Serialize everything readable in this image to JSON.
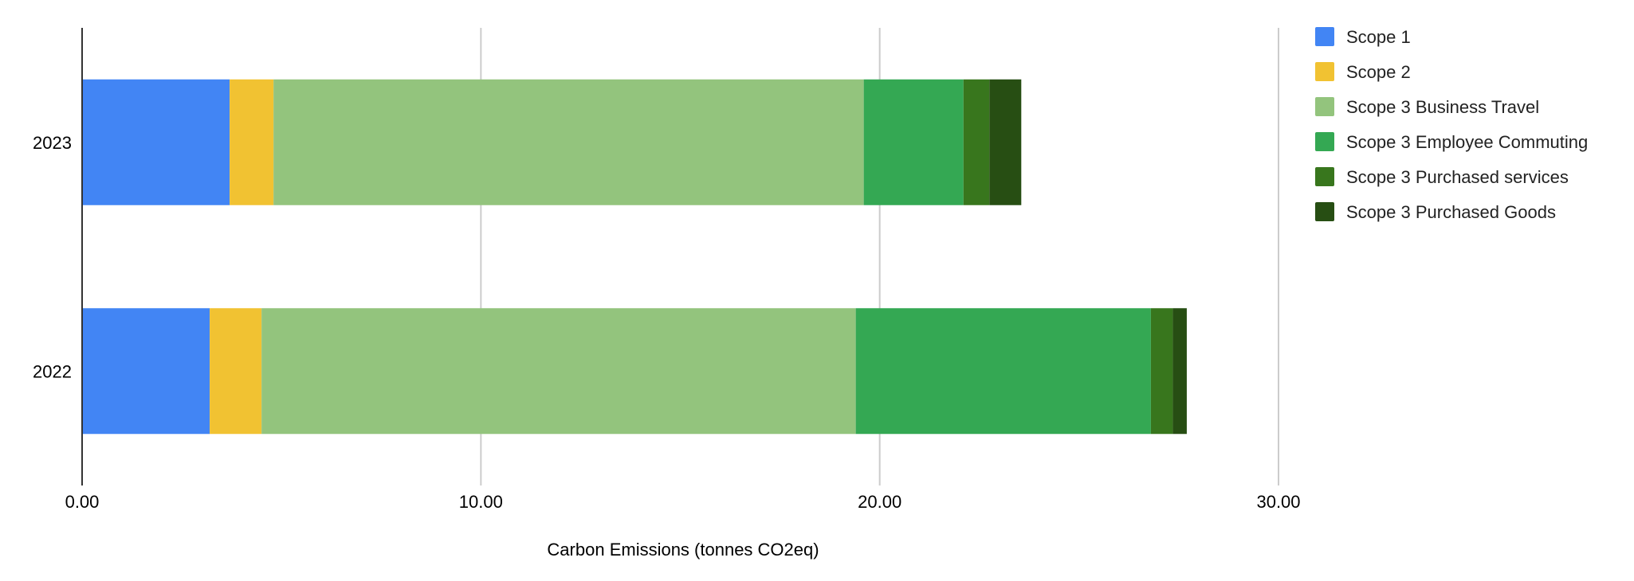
{
  "chart_data": {
    "type": "bar",
    "orientation": "horizontal",
    "stacked": true,
    "title": "",
    "xlabel": "Carbon Emissions (tonnes CO2eq)",
    "ylabel": "",
    "xlim": [
      0,
      30
    ],
    "x_ticks": [
      "0.00",
      "10.00",
      "20.00",
      "30.00"
    ],
    "grid": true,
    "legend_position": "right",
    "categories": [
      "2023",
      "2022"
    ],
    "series": [
      {
        "name": "Scope 1",
        "color": "#4285F4",
        "values": [
          3.7,
          3.2
        ]
      },
      {
        "name": "Scope 2",
        "color": "#F1C232",
        "values": [
          1.1,
          1.3
        ]
      },
      {
        "name": "Scope 3 Business Travel",
        "color": "#93C47D",
        "values": [
          14.8,
          14.9
        ]
      },
      {
        "name": "Scope 3 Employee Commuting",
        "color": "#34A853",
        "values": [
          2.5,
          7.4
        ]
      },
      {
        "name": "Scope 3 Purchased services",
        "color": "#38761D",
        "values": [
          0.65,
          0.55
        ]
      },
      {
        "name": "Scope 3 Purchased Goods",
        "color": "#274E13",
        "values": [
          0.8,
          0.35
        ]
      }
    ]
  }
}
